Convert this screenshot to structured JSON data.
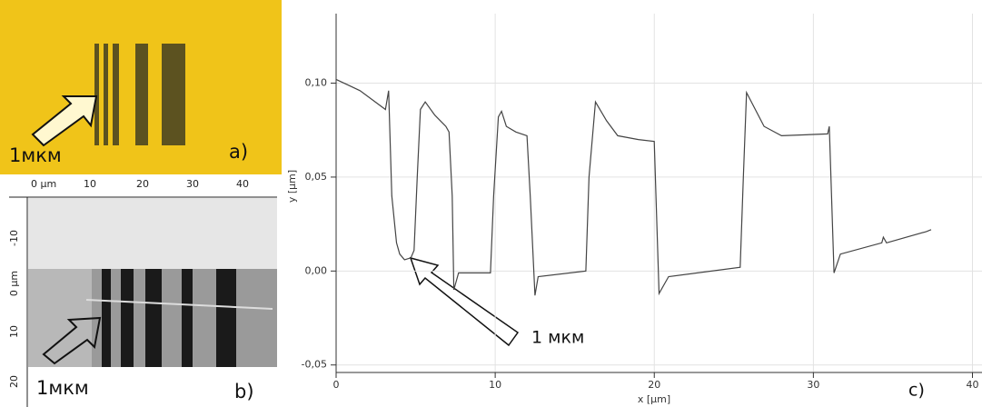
{
  "images": {
    "a": {
      "scale_text": "1мкм",
      "label": "a)"
    },
    "b": {
      "scale_text": "1мкм",
      "label": "b)",
      "top_ruler": [
        "0 µm",
        "10",
        "20",
        "30",
        "40"
      ],
      "left_ruler": [
        "-10",
        "0 µm",
        "10",
        "20"
      ]
    }
  },
  "chart_data": {
    "type": "line",
    "xlabel": "x [µm]",
    "ylabel": "y [µm]",
    "annotations": [
      "1 мкм",
      "c)"
    ],
    "x": [
      0,
      1.5,
      3.1,
      3.3,
      3.5,
      3.8,
      4.0,
      4.3,
      4.7,
      4.9,
      5.1,
      5.3,
      5.6,
      6.2,
      6.9,
      7.1,
      7.3,
      7.4,
      7.7,
      9.7,
      9.9,
      10.2,
      10.4,
      10.7,
      11.3,
      12.0,
      12.2,
      12.5,
      12.7,
      15.7,
      15.9,
      16.3,
      17.0,
      17.7,
      19.0,
      20.0,
      20.3,
      20.9,
      25.4,
      25.6,
      25.8,
      26.9,
      28.0,
      30.9,
      31.0,
      31.3,
      31.7,
      34.3,
      34.4,
      34.6,
      37.1,
      37.4
    ],
    "series": [
      {
        "color": "#444444",
        "values": [
          0.102,
          0.096,
          0.086,
          0.096,
          0.04,
          0.015,
          0.009,
          0.006,
          0.007,
          0.011,
          0.05,
          0.086,
          0.09,
          0.083,
          0.077,
          0.074,
          0.04,
          -0.01,
          -0.001,
          -0.001,
          0.04,
          0.082,
          0.085,
          0.077,
          0.074,
          0.072,
          0.04,
          -0.013,
          -0.003,
          0.0,
          0.05,
          0.09,
          0.08,
          0.072,
          0.07,
          0.069,
          -0.012,
          -0.003,
          0.002,
          0.05,
          0.095,
          0.077,
          0.072,
          0.073,
          0.077,
          -0.001,
          0.009,
          0.015,
          0.018,
          0.015,
          0.021,
          0.022
        ]
      }
    ],
    "xlim": [
      0,
      40.6
    ],
    "ylim": [
      -0.054,
      0.137
    ],
    "xticks": [
      0,
      10,
      20,
      30,
      40
    ],
    "yticks": [
      {
        "value": -0.05,
        "label": "-0,05"
      },
      {
        "value": 0,
        "label": "0,00"
      },
      {
        "value": 0.05,
        "label": "0,05"
      },
      {
        "value": 0.1,
        "label": "0,10"
      }
    ],
    "grid": true
  }
}
